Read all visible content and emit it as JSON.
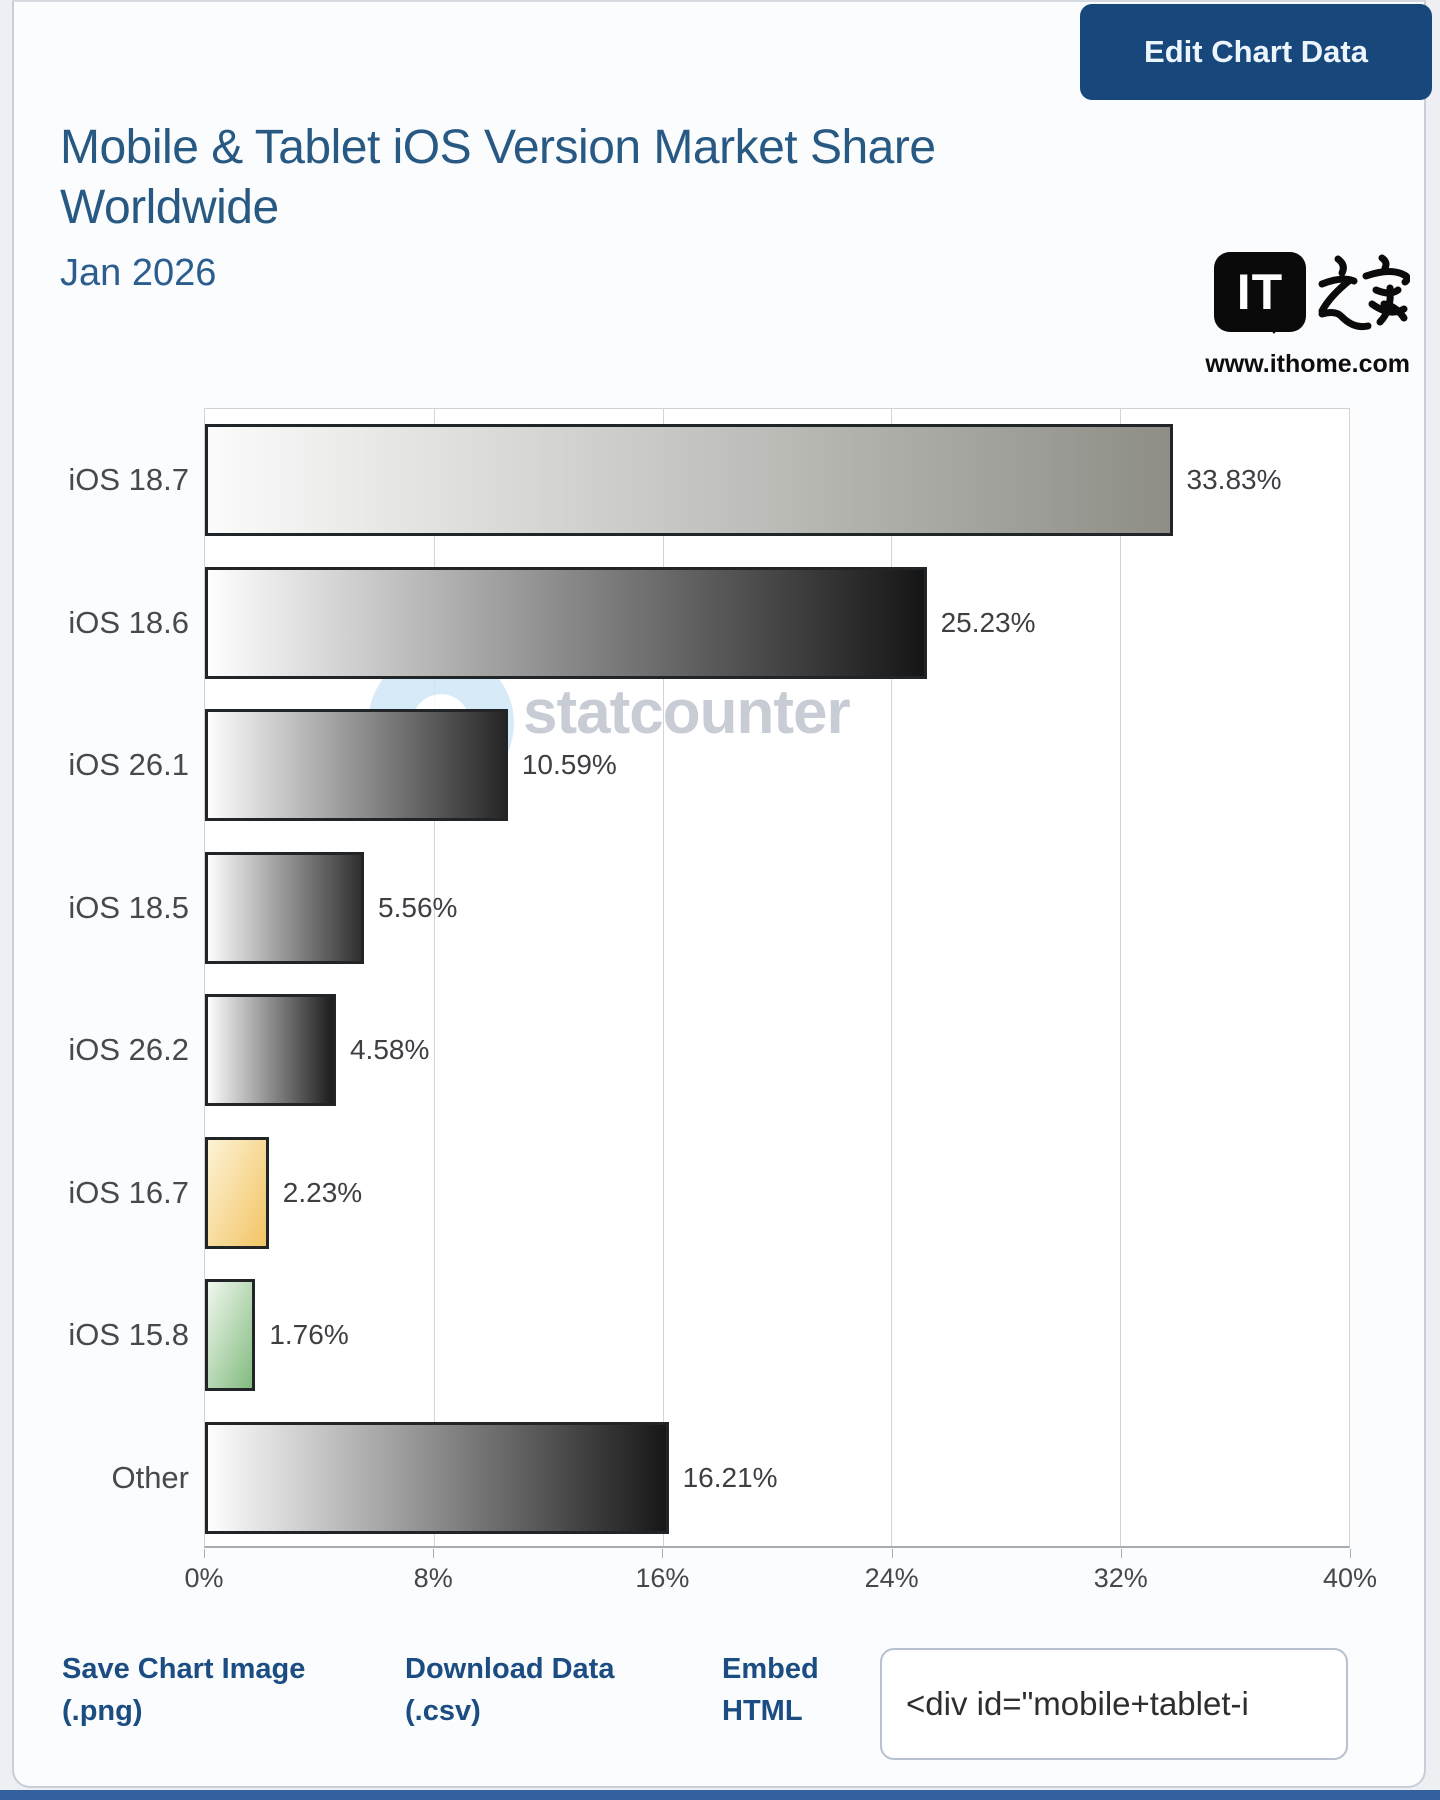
{
  "header": {
    "edit_button_label": "Edit Chart Data",
    "title": "Mobile & Tablet iOS Version Market Share Worldwide",
    "subtitle": "Jan 2026"
  },
  "branding": {
    "logo_text": "IT",
    "logo_suffix": "之家",
    "site_url": "www.ithome.com"
  },
  "watermark": {
    "text": "statcounter"
  },
  "chart_data": {
    "type": "bar",
    "orientation": "horizontal",
    "title": "Mobile & Tablet iOS Version Market Share Worldwide",
    "subtitle": "Jan 2026",
    "categories": [
      "iOS 18.7",
      "iOS 18.6",
      "iOS 26.1",
      "iOS 18.5",
      "iOS 26.2",
      "iOS 16.7",
      "iOS 15.8",
      "Other"
    ],
    "values": [
      33.83,
      25.23,
      10.59,
      5.56,
      4.58,
      2.23,
      1.76,
      16.21
    ],
    "xlabel": "",
    "ylabel": "",
    "xlim": [
      0,
      40
    ],
    "xticks": [
      0,
      8,
      16,
      24,
      32,
      40
    ],
    "xtick_labels": [
      "0%",
      "8%",
      "16%",
      "24%",
      "32%",
      "40%"
    ],
    "grid": "vertical",
    "legend": "none",
    "items": [
      {
        "label": "iOS 18.7",
        "value": 33.83,
        "value_label": "33.83%",
        "color_start": "#fbfbfb",
        "color_end": "#8e8e87",
        "gradient_dir": "90deg"
      },
      {
        "label": "iOS 18.6",
        "value": 25.23,
        "value_label": "25.23%",
        "color_start": "#fefefe",
        "color_end": "#151515",
        "gradient_dir": "90deg"
      },
      {
        "label": "iOS 26.1",
        "value": 10.59,
        "value_label": "10.59%",
        "color_start": "#fdfdfd",
        "color_end": "#262626",
        "gradient_dir": "90deg"
      },
      {
        "label": "iOS 18.5",
        "value": 5.56,
        "value_label": "5.56%",
        "color_start": "#fdfdfd",
        "color_end": "#2f2f2f",
        "gradient_dir": "90deg"
      },
      {
        "label": "iOS 26.2",
        "value": 4.58,
        "value_label": "4.58%",
        "color_start": "#fdfdfd",
        "color_end": "#1c1c1c",
        "gradient_dir": "90deg"
      },
      {
        "label": "iOS 16.7",
        "value": 2.23,
        "value_label": "2.23%",
        "color_start": "#fdf3d5",
        "color_end": "#f2c464",
        "gradient_dir": "115deg"
      },
      {
        "label": "iOS 15.8",
        "value": 1.76,
        "value_label": "1.76%",
        "color_start": "#f0f7ee",
        "color_end": "#82bb7f",
        "gradient_dir": "115deg"
      },
      {
        "label": "Other",
        "value": 16.21,
        "value_label": "16.21%",
        "color_start": "#fefefe",
        "color_end": "#171717",
        "gradient_dir": "90deg"
      }
    ]
  },
  "footer": {
    "save_image_label": "Save Chart Image (.png)",
    "download_data_label": "Download Data (.csv)",
    "embed_label": "Embed HTML",
    "embed_value": "<div id=\"mobile+tablet-i"
  },
  "colors": {
    "accent_navy": "#18477c",
    "title_blue": "#275983",
    "link_blue": "#1c4d82",
    "bottom_strip_blue": "#33619f"
  }
}
